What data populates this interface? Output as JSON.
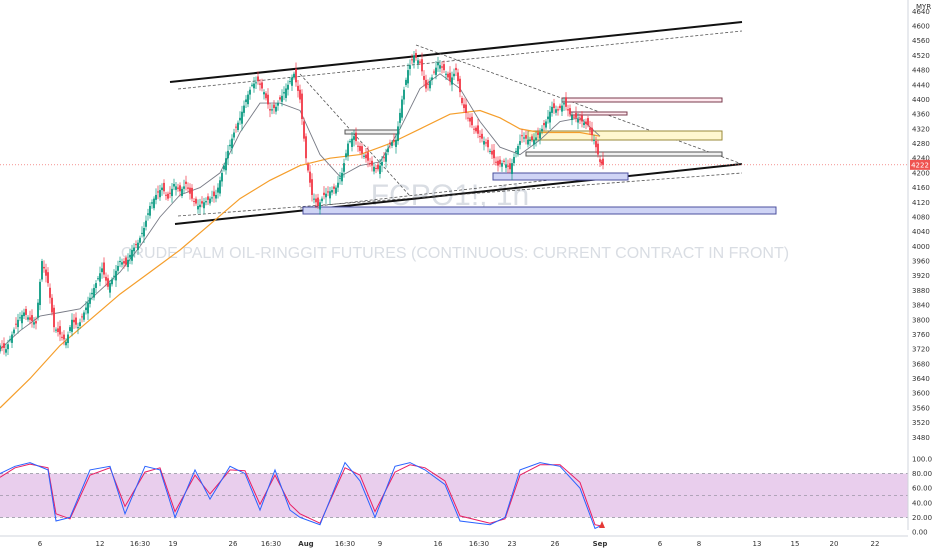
{
  "chart_data": {
    "type": "candlestick",
    "watermark": {
      "symbol": "FCPO1!, 1h",
      "description": "CRUDE PALM OIL-RINGGIT FUTURES (CONTINUOUS: CURRENT CONTRACT IN FRONT)"
    },
    "price_axis": {
      "currency": "MYR",
      "range": [
        3440,
        4660
      ],
      "ticks": [
        3480,
        3520,
        3560,
        3600,
        3640,
        3680,
        3720,
        3760,
        3800,
        3840,
        3880,
        3920,
        3960,
        4000,
        4040,
        4080,
        4120,
        4160,
        4200,
        4240,
        4280,
        4320,
        4360,
        4400,
        4440,
        4480,
        4520,
        4560,
        4600,
        4640
      ],
      "tick_labels": [
        "3480",
        "3520",
        "3560",
        "3600",
        "3640",
        "3680",
        "3720",
        "3760",
        "3800",
        "3840",
        "3880",
        "3920",
        "3960",
        "4000",
        "4040",
        "4080",
        "4120",
        "4160",
        "4200",
        "4240",
        "4280",
        "4320",
        "4360",
        "4400",
        "4440",
        "4480",
        "4520",
        "4560",
        "4600",
        "4640"
      ],
      "last_price": "4222",
      "last_price_value": 4222
    },
    "time_axis": {
      "labels": [
        "6",
        "12",
        "16:30",
        "19",
        "26",
        "16:30",
        "Aug",
        "16:30",
        "9",
        "16",
        "16:30",
        "23",
        "26",
        "Sep",
        "6",
        "8",
        "13",
        "15",
        "20",
        "22"
      ]
    },
    "indicator": {
      "name": "Stochastic",
      "levels": [
        "100.00",
        "80.00",
        "60.00",
        "40.00",
        "20.00",
        "0.00"
      ],
      "level_values": [
        100,
        80,
        60,
        40,
        20,
        0
      ],
      "band": [
        20,
        80
      ]
    },
    "series": [
      {
        "name": "price",
        "points": [
          [
            0,
            3730
          ],
          [
            6,
            3720
          ],
          [
            12,
            3760
          ],
          [
            18,
            3800
          ],
          [
            24,
            3820
          ],
          [
            30,
            3800
          ],
          [
            36,
            3790
          ],
          [
            42,
            3960
          ],
          [
            48,
            3900
          ],
          [
            54,
            3780
          ],
          [
            60,
            3760
          ],
          [
            66,
            3740
          ],
          [
            72,
            3800
          ],
          [
            78,
            3780
          ],
          [
            84,
            3820
          ],
          [
            90,
            3860
          ],
          [
            96,
            3900
          ],
          [
            102,
            3940
          ],
          [
            108,
            3890
          ],
          [
            114,
            3920
          ],
          [
            120,
            3960
          ],
          [
            126,
            3950
          ],
          [
            132,
            3990
          ],
          [
            138,
            4010
          ],
          [
            144,
            4050
          ],
          [
            150,
            4110
          ],
          [
            156,
            4140
          ],
          [
            162,
            4160
          ],
          [
            168,
            4130
          ],
          [
            174,
            4170
          ],
          [
            180,
            4150
          ],
          [
            186,
            4170
          ],
          [
            192,
            4130
          ],
          [
            198,
            4110
          ],
          [
            204,
            4120
          ],
          [
            210,
            4130
          ],
          [
            216,
            4140
          ],
          [
            222,
            4200
          ],
          [
            228,
            4260
          ],
          [
            234,
            4310
          ],
          [
            240,
            4350
          ],
          [
            246,
            4400
          ],
          [
            252,
            4440
          ],
          [
            258,
            4450
          ],
          [
            264,
            4420
          ],
          [
            270,
            4370
          ],
          [
            276,
            4380
          ],
          [
            282,
            4410
          ],
          [
            288,
            4440
          ],
          [
            294,
            4470
          ],
          [
            300,
            4400
          ],
          [
            306,
            4240
          ],
          [
            312,
            4140
          ],
          [
            318,
            4110
          ],
          [
            324,
            4140
          ],
          [
            330,
            4150
          ],
          [
            336,
            4160
          ],
          [
            342,
            4200
          ],
          [
            348,
            4280
          ],
          [
            354,
            4300
          ],
          [
            360,
            4260
          ],
          [
            366,
            4240
          ],
          [
            372,
            4220
          ],
          [
            378,
            4210
          ],
          [
            384,
            4240
          ],
          [
            390,
            4280
          ],
          [
            396,
            4290
          ],
          [
            402,
            4400
          ],
          [
            408,
            4480
          ],
          [
            414,
            4520
          ],
          [
            420,
            4500
          ],
          [
            426,
            4430
          ],
          [
            432,
            4460
          ],
          [
            438,
            4500
          ],
          [
            444,
            4480
          ],
          [
            450,
            4450
          ],
          [
            456,
            4480
          ],
          [
            462,
            4390
          ],
          [
            468,
            4350
          ],
          [
            474,
            4320
          ],
          [
            480,
            4300
          ],
          [
            486,
            4280
          ],
          [
            492,
            4250
          ],
          [
            498,
            4220
          ],
          [
            504,
            4230
          ],
          [
            510,
            4210
          ],
          [
            516,
            4260
          ],
          [
            522,
            4300
          ],
          [
            528,
            4290
          ],
          [
            534,
            4290
          ],
          [
            540,
            4310
          ],
          [
            546,
            4340
          ],
          [
            552,
            4380
          ],
          [
            558,
            4370
          ],
          [
            564,
            4390
          ],
          [
            570,
            4360
          ],
          [
            576,
            4350
          ],
          [
            582,
            4340
          ],
          [
            588,
            4330
          ],
          [
            594,
            4290
          ],
          [
            600,
            4230
          ],
          [
            603,
            4222
          ]
        ]
      },
      {
        "name": "ma_short",
        "color": "#787b86",
        "points": [
          [
            0,
            3720
          ],
          [
            20,
            3770
          ],
          [
            40,
            3810
          ],
          [
            60,
            3820
          ],
          [
            80,
            3830
          ],
          [
            100,
            3880
          ],
          [
            120,
            3930
          ],
          [
            140,
            4000
          ],
          [
            160,
            4080
          ],
          [
            180,
            4140
          ],
          [
            200,
            4160
          ],
          [
            220,
            4200
          ],
          [
            240,
            4310
          ],
          [
            260,
            4390
          ],
          [
            280,
            4390
          ],
          [
            300,
            4370
          ],
          [
            320,
            4250
          ],
          [
            340,
            4190
          ],
          [
            360,
            4220
          ],
          [
            380,
            4230
          ],
          [
            400,
            4320
          ],
          [
            420,
            4430
          ],
          [
            440,
            4470
          ],
          [
            460,
            4430
          ],
          [
            480,
            4340
          ],
          [
            500,
            4270
          ],
          [
            520,
            4250
          ],
          [
            540,
            4290
          ],
          [
            560,
            4340
          ],
          [
            580,
            4350
          ],
          [
            600,
            4300
          ]
        ]
      },
      {
        "name": "ma_long",
        "color": "#f59e2b",
        "points": [
          [
            0,
            3560
          ],
          [
            30,
            3640
          ],
          [
            60,
            3730
          ],
          [
            90,
            3800
          ],
          [
            120,
            3870
          ],
          [
            150,
            3930
          ],
          [
            180,
            3990
          ],
          [
            210,
            4060
          ],
          [
            240,
            4130
          ],
          [
            270,
            4180
          ],
          [
            300,
            4220
          ],
          [
            330,
            4240
          ],
          [
            360,
            4250
          ],
          [
            390,
            4280
          ],
          [
            420,
            4320
          ],
          [
            450,
            4360
          ],
          [
            480,
            4370
          ],
          [
            500,
            4350
          ],
          [
            520,
            4320
          ],
          [
            540,
            4310
          ],
          [
            560,
            4310
          ],
          [
            580,
            4310
          ],
          [
            600,
            4300
          ]
        ]
      },
      {
        "name": "stoch_k",
        "color": "#2962ff",
        "points": [
          [
            0,
            80
          ],
          [
            15,
            90
          ],
          [
            30,
            95
          ],
          [
            48,
            85
          ],
          [
            56,
            15
          ],
          [
            70,
            20
          ],
          [
            90,
            85
          ],
          [
            110,
            90
          ],
          [
            125,
            25
          ],
          [
            145,
            90
          ],
          [
            160,
            85
          ],
          [
            175,
            20
          ],
          [
            195,
            85
          ],
          [
            210,
            45
          ],
          [
            230,
            90
          ],
          [
            245,
            80
          ],
          [
            260,
            30
          ],
          [
            275,
            85
          ],
          [
            290,
            30
          ],
          [
            300,
            20
          ],
          [
            320,
            10
          ],
          [
            345,
            95
          ],
          [
            360,
            70
          ],
          [
            375,
            20
          ],
          [
            395,
            90
          ],
          [
            410,
            95
          ],
          [
            425,
            85
          ],
          [
            445,
            65
          ],
          [
            460,
            15
          ],
          [
            490,
            10
          ],
          [
            505,
            20
          ],
          [
            520,
            85
          ],
          [
            540,
            95
          ],
          [
            560,
            90
          ],
          [
            580,
            60
          ],
          [
            595,
            5
          ],
          [
            603,
            10
          ]
        ]
      },
      {
        "name": "stoch_d",
        "color": "#e91e63",
        "points": [
          [
            0,
            75
          ],
          [
            15,
            88
          ],
          [
            30,
            93
          ],
          [
            48,
            88
          ],
          [
            56,
            25
          ],
          [
            70,
            18
          ],
          [
            90,
            78
          ],
          [
            110,
            88
          ],
          [
            125,
            35
          ],
          [
            145,
            82
          ],
          [
            160,
            88
          ],
          [
            175,
            28
          ],
          [
            195,
            78
          ],
          [
            210,
            52
          ],
          [
            230,
            85
          ],
          [
            245,
            84
          ],
          [
            260,
            38
          ],
          [
            275,
            78
          ],
          [
            290,
            38
          ],
          [
            300,
            25
          ],
          [
            320,
            12
          ],
          [
            345,
            88
          ],
          [
            360,
            78
          ],
          [
            375,
            28
          ],
          [
            395,
            82
          ],
          [
            410,
            92
          ],
          [
            425,
            88
          ],
          [
            445,
            70
          ],
          [
            460,
            22
          ],
          [
            490,
            12
          ],
          [
            505,
            18
          ],
          [
            520,
            78
          ],
          [
            540,
            92
          ],
          [
            560,
            92
          ],
          [
            580,
            68
          ],
          [
            595,
            10
          ],
          [
            603,
            8
          ]
        ]
      }
    ]
  }
}
